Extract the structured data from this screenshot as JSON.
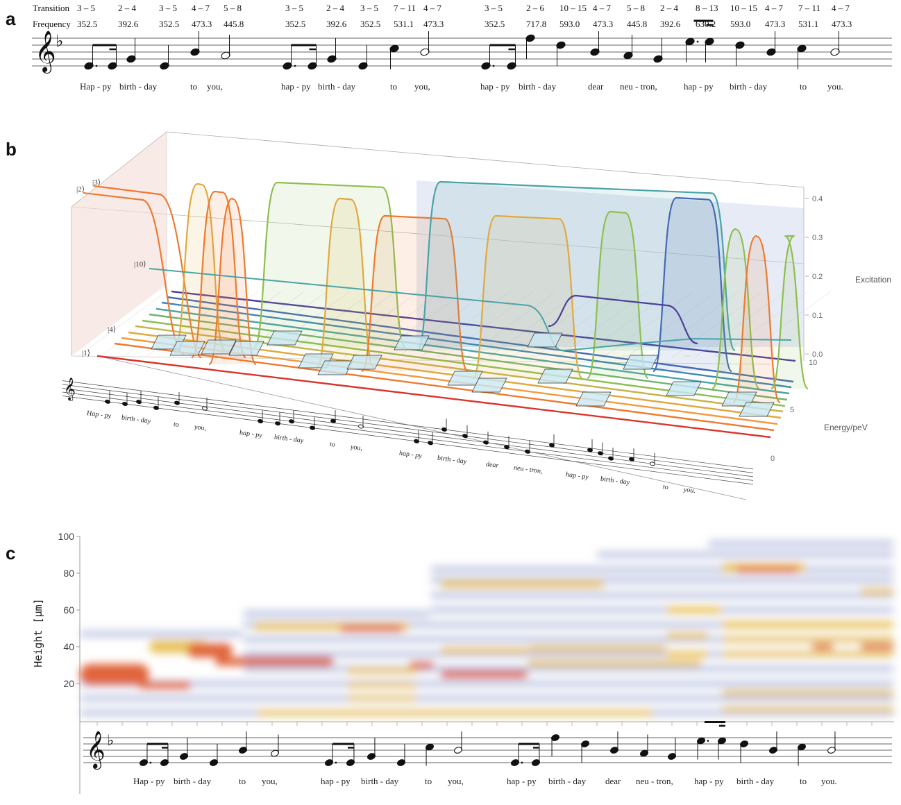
{
  "panels": {
    "a": "a",
    "b": "b",
    "c": "c"
  },
  "table": {
    "transition_label": "Transition",
    "frequency_label": "Frequency",
    "transitions": [
      "3 – 5",
      "2 – 4",
      "3 – 5",
      "4 – 7",
      "5 – 8",
      "3 – 5",
      "2 – 4",
      "3 – 5",
      "7 – 11",
      "4 – 7",
      "3 – 5",
      "2 – 6",
      "10 – 15",
      "4 – 7",
      "5 – 8",
      "2 – 4",
      "8 – 13",
      "10 – 15",
      "4 – 7",
      "7 – 11",
      "4 – 7"
    ],
    "frequencies": [
      "352.5",
      "392.6",
      "352.5",
      "473.3",
      "445.8",
      "352.5",
      "392.6",
      "352.5",
      "531.1",
      "473.3",
      "352.5",
      "717.8",
      "593.0",
      "473.3",
      "445.8",
      "392.6",
      "630.2",
      "593.0",
      "473.3",
      "531.1",
      "473.3"
    ]
  },
  "lyrics": [
    "Hap - py",
    "birth - day",
    "to",
    "you,",
    "hap - py",
    "birth - day",
    "to",
    "you,",
    "hap - py",
    "birth - day",
    "dear",
    "neu - tron,",
    "hap - py",
    "birth - day",
    "to",
    "you."
  ],
  "chart_data": [
    {
      "type": "line",
      "title": "",
      "zlabel": "Excitation",
      "ylabel": "Energy/peV",
      "zticks": [
        "0.0",
        "0.1",
        "0.2",
        "0.3",
        "0.4"
      ],
      "yticks": [
        "0",
        "5",
        "10"
      ],
      "state_labels": [
        "|1⟩",
        "|2⟩",
        "|3⟩",
        "|4⟩",
        "|10⟩"
      ],
      "zlim": [
        0,
        0.4
      ]
    },
    {
      "type": "heatmap",
      "ylabel": "Height  [μm]",
      "yticks": [
        "20",
        "40",
        "60",
        "80",
        "100"
      ],
      "ylim": [
        0,
        100
      ]
    }
  ],
  "colors": {
    "red": "#d9352b",
    "orange": "#ee7a30",
    "gold": "#e0a93f",
    "green": "#8dbf4f",
    "teal": "#4aa3a6",
    "purple": "#4b3f9a",
    "blue": "#4169b5",
    "heat_high": "#e0653a",
    "heat_mid": "#e8c15a",
    "heat_low": "#aab3d8"
  }
}
